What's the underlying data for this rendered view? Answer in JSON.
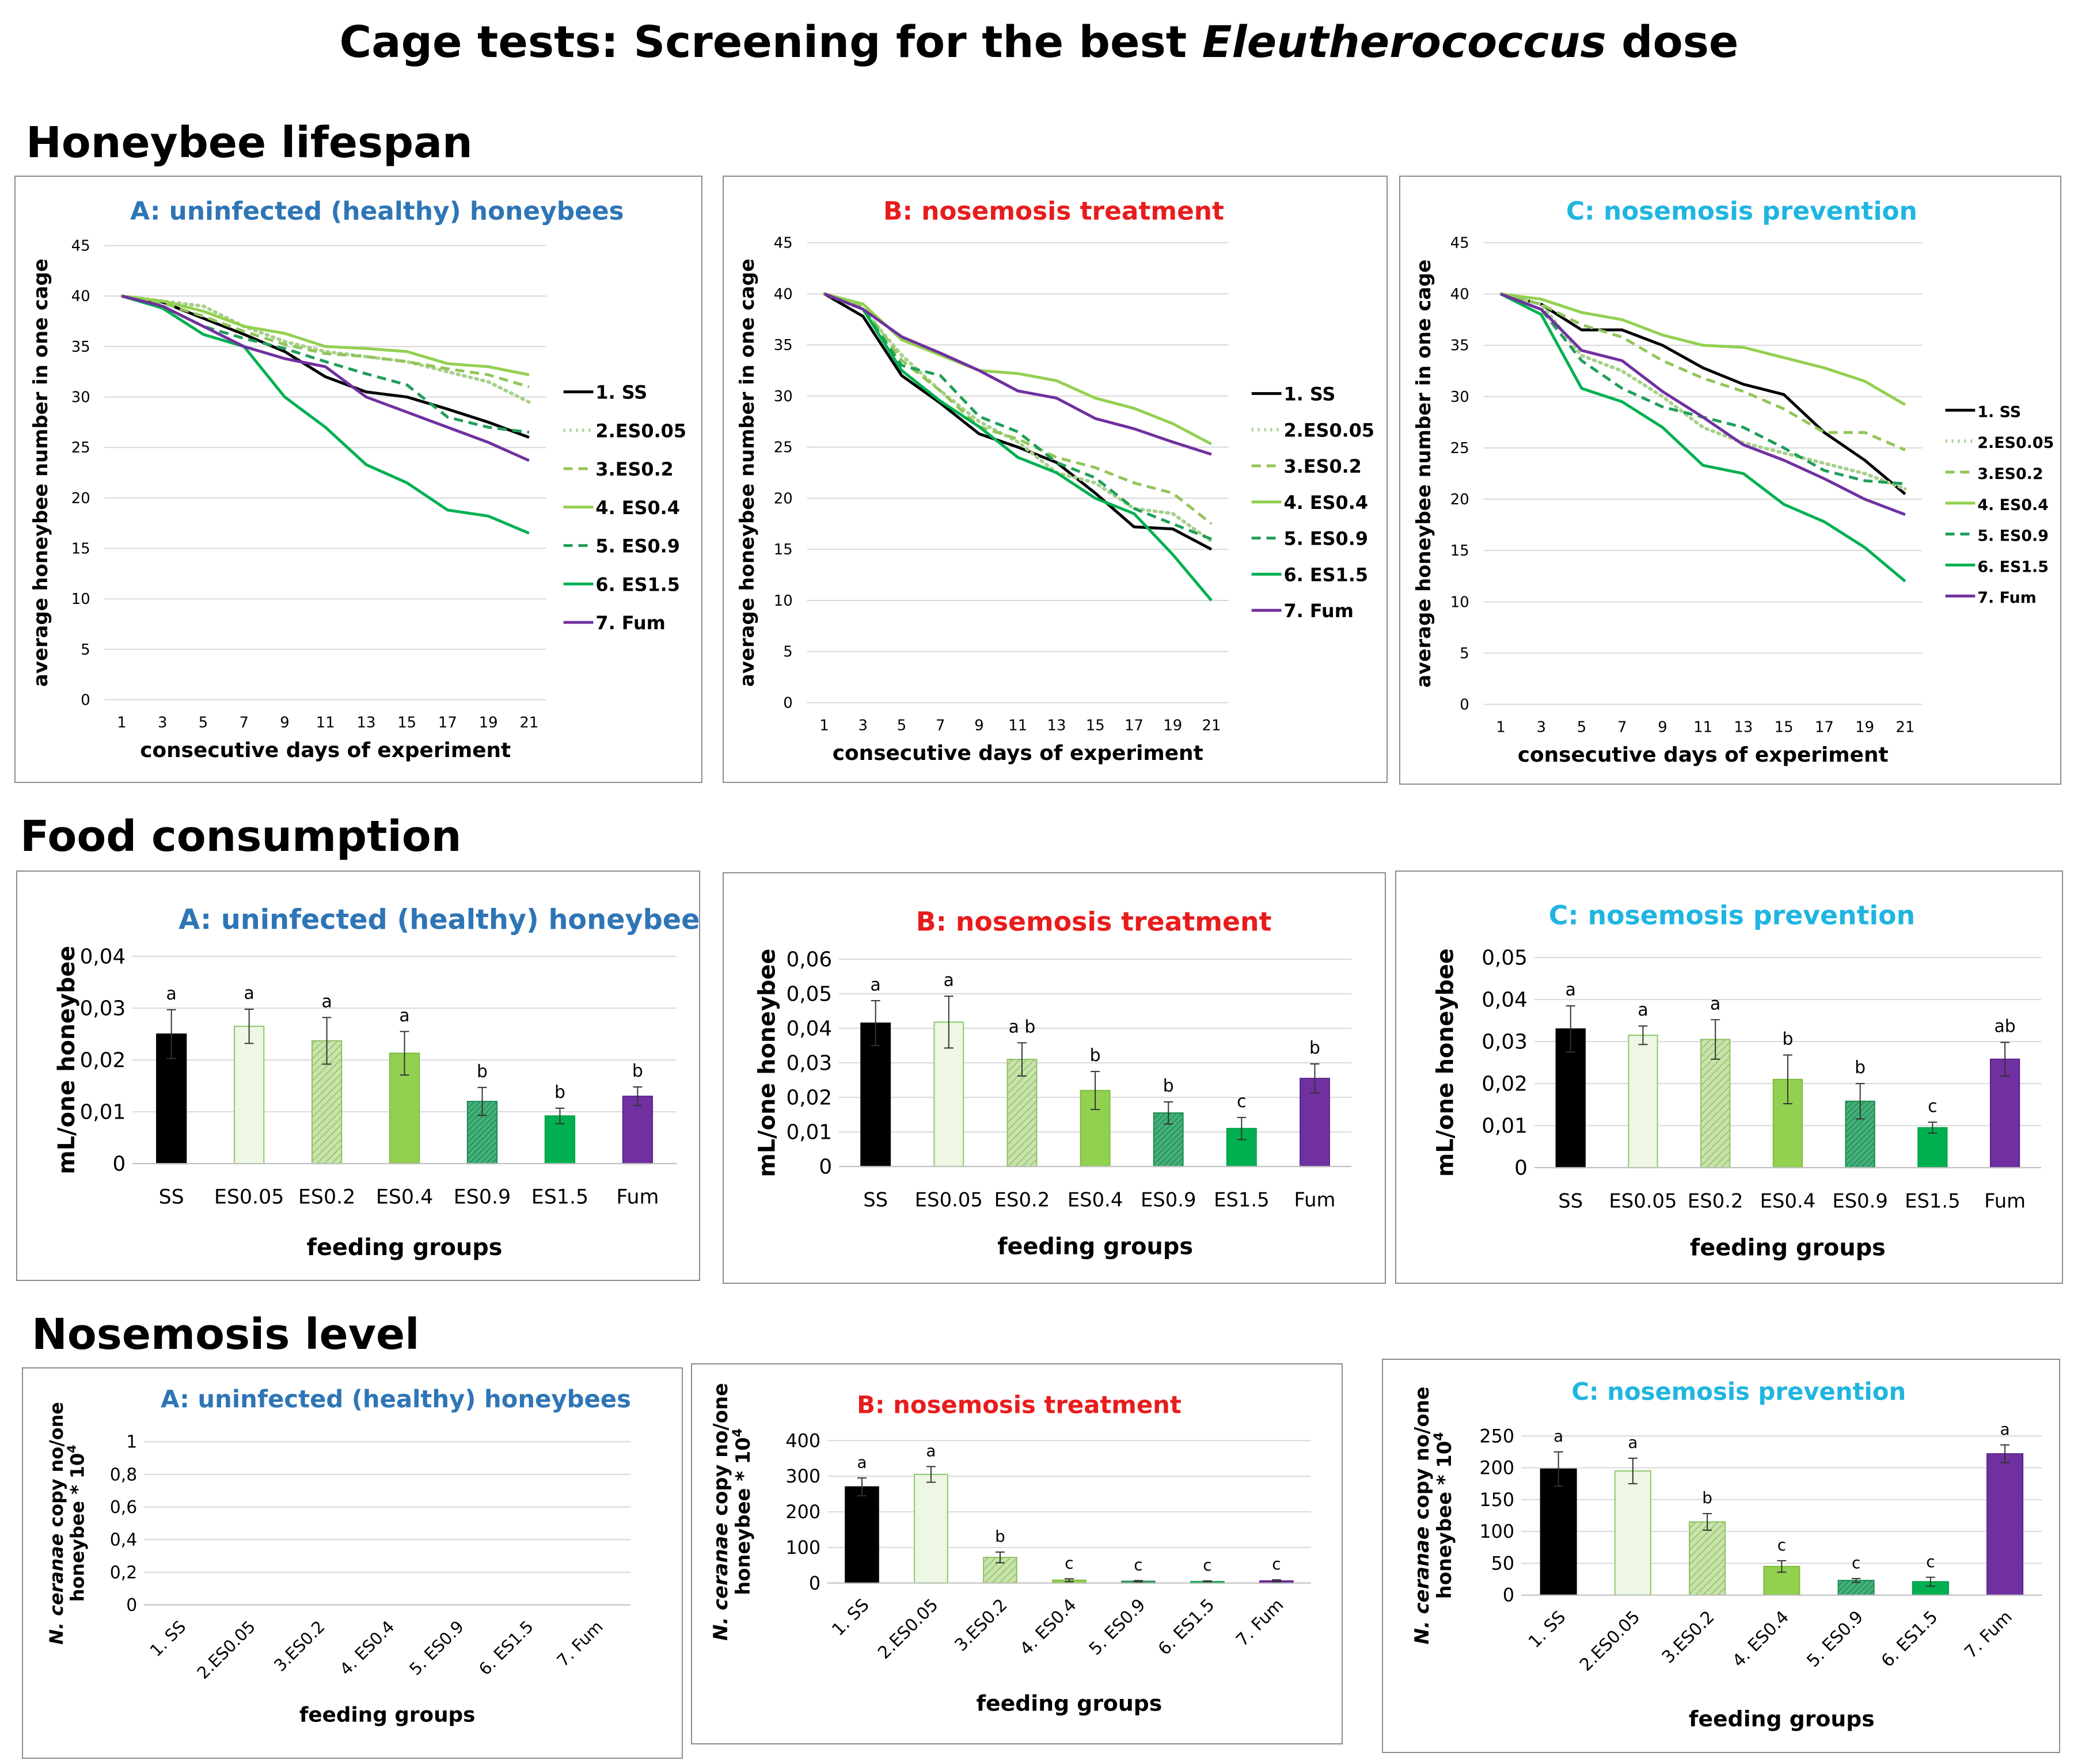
{
  "page": {
    "title_prefix": "Cage tests: Screening for the best ",
    "title_italic": "Eleutherococcus",
    "title_suffix": " dose",
    "sections": [
      "Honeybee lifespan",
      "Food consumption",
      "Nosemosis level"
    ]
  },
  "colors": {
    "SS": "#000000",
    "ES0.05": "#a8d08d",
    "ES0.2": "#92c55a",
    "ES0.4": "#92d050",
    "ES0.9": "#1f9e5a",
    "ES1.5": "#00b050",
    "Fum": "#7030a0",
    "title_A": "#2e75b6",
    "title_B": "#e81c1c",
    "title_C": "#1fb5e0"
  },
  "chart_data": [
    {
      "id": "lifespan-A",
      "type": "line",
      "title": "A: uninfected (healthy) honeybees",
      "xlabel": "consecutive days of experiment",
      "ylabel": "average honeybee number in one cage",
      "x": [
        1,
        3,
        5,
        7,
        9,
        11,
        13,
        15,
        17,
        19,
        21
      ],
      "ylim": [
        0,
        45
      ],
      "yticks": [
        0,
        5,
        10,
        15,
        20,
        25,
        30,
        35,
        40,
        45
      ],
      "grid": true,
      "legend": "right",
      "series": [
        {
          "name": "1. SS",
          "values": [
            40,
            39.4,
            37.8,
            36.2,
            34.5,
            32.0,
            30.5,
            30.0,
            28.8,
            27.5,
            26.0
          ]
        },
        {
          "name": "2.ES0.05",
          "values": [
            40,
            39.5,
            39.0,
            37.0,
            35.5,
            34.5,
            34.0,
            33.5,
            32.5,
            31.5,
            29.5
          ]
        },
        {
          "name": "3.ES0.2",
          "values": [
            40,
            39.3,
            38.0,
            36.5,
            35.2,
            34.3,
            34.0,
            33.5,
            32.8,
            32.2,
            31.0
          ]
        },
        {
          "name": "4. ES0.4",
          "values": [
            40,
            39.5,
            38.5,
            37.0,
            36.3,
            35.0,
            34.8,
            34.5,
            33.3,
            33.0,
            32.2
          ]
        },
        {
          "name": "5. ES0.9",
          "values": [
            40,
            39.0,
            37.0,
            35.8,
            34.8,
            33.5,
            32.3,
            31.2,
            28.0,
            27.0,
            26.5
          ]
        },
        {
          "name": "6. ES1.5",
          "values": [
            40,
            38.8,
            36.2,
            35.0,
            30.0,
            27.0,
            23.3,
            21.5,
            18.8,
            18.2,
            16.5
          ]
        },
        {
          "name": "7. Fum",
          "values": [
            40,
            39.0,
            37.0,
            35.0,
            33.8,
            33.0,
            30.0,
            28.5,
            27.0,
            25.5,
            23.7
          ]
        }
      ]
    },
    {
      "id": "lifespan-B",
      "type": "line",
      "title": "B: nosemosis treatment",
      "xlabel": "consecutive days of experiment",
      "ylabel": "average honeybee number in one cage",
      "x": [
        1,
        3,
        5,
        7,
        9,
        11,
        13,
        15,
        17,
        19,
        21
      ],
      "ylim": [
        0,
        45
      ],
      "yticks": [
        0,
        5,
        10,
        15,
        20,
        25,
        30,
        35,
        40,
        45
      ],
      "grid": true,
      "legend": "right",
      "series": [
        {
          "name": "1. SS",
          "values": [
            40,
            37.8,
            32.0,
            29.3,
            26.3,
            25.0,
            23.5,
            20.5,
            17.2,
            17.0,
            15.0
          ]
        },
        {
          "name": "2.ES0.05",
          "values": [
            40,
            38.5,
            34.0,
            30.5,
            27.5,
            25.5,
            22.5,
            21.5,
            19.0,
            18.5,
            15.8
          ]
        },
        {
          "name": "3.ES0.2",
          "values": [
            40,
            38.8,
            33.5,
            30.5,
            27.0,
            25.8,
            24.0,
            23.0,
            21.5,
            20.5,
            17.5
          ]
        },
        {
          "name": "4. ES0.4",
          "values": [
            40,
            39.0,
            35.5,
            34.0,
            32.5,
            32.2,
            31.5,
            29.8,
            28.8,
            27.3,
            25.3
          ]
        },
        {
          "name": "5. ES0.9",
          "values": [
            40,
            38.5,
            33.0,
            32.0,
            28.0,
            26.5,
            23.5,
            22.0,
            19.0,
            17.5,
            16.0
          ]
        },
        {
          "name": "6. ES1.5",
          "values": [
            40,
            38.5,
            32.5,
            29.5,
            27.0,
            24.0,
            22.5,
            20.0,
            18.5,
            14.5,
            10.0
          ]
        },
        {
          "name": "7. Fum",
          "values": [
            40,
            38.5,
            35.8,
            34.2,
            32.5,
            30.5,
            29.8,
            27.8,
            26.8,
            25.5,
            24.3
          ]
        }
      ]
    },
    {
      "id": "lifespan-C",
      "type": "line",
      "title": "C: nosemosis prevention",
      "xlabel": "consecutive days of experiment",
      "ylabel": "average honeybee number in one cage",
      "x": [
        1,
        3,
        5,
        7,
        9,
        11,
        13,
        15,
        17,
        19,
        21
      ],
      "ylim": [
        0,
        45
      ],
      "yticks": [
        0,
        5,
        10,
        15,
        20,
        25,
        30,
        35,
        40,
        45
      ],
      "grid": true,
      "legend": "right",
      "series": [
        {
          "name": "1. SS",
          "values": [
            40,
            39.0,
            36.5,
            36.5,
            35.0,
            32.8,
            31.2,
            30.2,
            26.5,
            23.8,
            20.5
          ]
        },
        {
          "name": "2.ES0.05",
          "values": [
            40,
            39.0,
            34.0,
            32.5,
            30.0,
            27.0,
            25.5,
            24.5,
            23.5,
            22.5,
            21.0
          ]
        },
        {
          "name": "3.ES0.2",
          "values": [
            40,
            39.0,
            37.0,
            35.8,
            33.5,
            31.8,
            30.5,
            28.8,
            26.5,
            26.5,
            24.8
          ]
        },
        {
          "name": "4. ES0.4",
          "values": [
            40,
            39.5,
            38.2,
            37.5,
            36.0,
            35.0,
            34.8,
            33.8,
            32.8,
            31.5,
            29.2
          ]
        },
        {
          "name": "5. ES0.9",
          "values": [
            40,
            38.5,
            33.5,
            30.8,
            29.0,
            28.0,
            27.0,
            25.0,
            22.8,
            21.8,
            21.5
          ]
        },
        {
          "name": "6. ES1.5",
          "values": [
            40,
            38.0,
            30.8,
            29.5,
            27.0,
            23.3,
            22.5,
            19.5,
            17.8,
            15.3,
            12.0
          ]
        },
        {
          "name": "7. Fum",
          "values": [
            40,
            38.5,
            34.5,
            33.5,
            30.5,
            28.0,
            25.3,
            23.8,
            22.0,
            20.0,
            18.5
          ]
        }
      ]
    },
    {
      "id": "food-A",
      "type": "bar",
      "title": "A: uninfected (healthy) honeybees",
      "xlabel": "feeding groups",
      "ylabel": "mL/one honeybee",
      "categories": [
        "SS",
        "ES0.05",
        "ES0.2",
        "ES0.4",
        "ES0.9",
        "ES1.5",
        "Fum"
      ],
      "values": [
        0.025,
        0.0265,
        0.0237,
        0.0213,
        0.012,
        0.0092,
        0.013
      ],
      "errors": [
        0.0047,
        0.0033,
        0.0045,
        0.0042,
        0.0027,
        0.0015,
        0.0018
      ],
      "letters": [
        "a",
        "a",
        "a",
        "a",
        "b",
        "b",
        "b"
      ],
      "ylim": [
        0,
        0.04
      ],
      "yticks": [
        "0",
        "0,01",
        "0,02",
        "0,03",
        "0,04"
      ]
    },
    {
      "id": "food-B",
      "type": "bar",
      "title": "B: nosemosis treatment",
      "xlabel": "feeding groups",
      "ylabel": "mL/one honeybee",
      "categories": [
        "SS",
        "ES0.05",
        "ES0.2",
        "ES0.4",
        "ES0.9",
        "ES1.5",
        "Fum"
      ],
      "values": [
        0.0415,
        0.0418,
        0.031,
        0.022,
        0.0155,
        0.011,
        0.0255
      ],
      "errors": [
        0.0065,
        0.0075,
        0.0048,
        0.0055,
        0.0032,
        0.0032,
        0.0042
      ],
      "letters": [
        "a",
        "a",
        "a b",
        "b",
        "b",
        "c",
        "b"
      ],
      "ylim": [
        0,
        0.06
      ],
      "yticks": [
        "0",
        "0,01",
        "0,02",
        "0,03",
        "0,04",
        "0,05",
        "0,06"
      ]
    },
    {
      "id": "food-C",
      "type": "bar",
      "title": "C: nosemosis prevention",
      "xlabel": "feeding groups",
      "ylabel": "mL/one honeybee",
      "categories": [
        "SS",
        "ES0.05",
        "ES0.2",
        "ES0.4",
        "ES0.9",
        "ES1.5",
        "Fum"
      ],
      "values": [
        0.033,
        0.0315,
        0.0305,
        0.021,
        0.0158,
        0.0095,
        0.0258
      ],
      "errors": [
        0.0055,
        0.0022,
        0.0047,
        0.0058,
        0.0042,
        0.0013,
        0.004
      ],
      "letters": [
        "a",
        "a",
        "a",
        "b",
        "b",
        "c",
        "ab"
      ],
      "ylim": [
        0,
        0.05
      ],
      "yticks": [
        "0",
        "0,01",
        "0,02",
        "0,03",
        "0,04",
        "0,05"
      ]
    },
    {
      "id": "nosema-A",
      "type": "bar",
      "title": "A: uninfected (healthy) honeybees",
      "xlabel": "feeding groups",
      "ylabel_italic": "N. ceranae",
      "ylabel_rest": " copy no/one",
      "ylabel_line2": "honeybee * 10",
      "ylabel_sup": "4",
      "categories": [
        "1. SS",
        "2.ES0.05",
        "3.ES0.2",
        "4. ES0.4",
        "5. ES0.9",
        "6. ES1.5",
        "7. Fum"
      ],
      "values": [
        0,
        0,
        0,
        0,
        0,
        0,
        0
      ],
      "errors": [
        0,
        0,
        0,
        0,
        0,
        0,
        0
      ],
      "letters": [
        "",
        "",
        "",
        "",
        "",
        "",
        ""
      ],
      "ylim": [
        0,
        1
      ],
      "yticks": [
        "0",
        "0,2",
        "0,4",
        "0,6",
        "0,8",
        "1"
      ],
      "grid": true
    },
    {
      "id": "nosema-B",
      "type": "bar",
      "title": "B: nosemosis treatment",
      "xlabel": "feeding groups",
      "ylabel_italic": "N. ceranae",
      "ylabel_rest": " copy no/one",
      "ylabel_line2": "honeybee * 10",
      "ylabel_sup": "4",
      "categories": [
        "1. SS",
        "2.ES0.05",
        "3.ES0.2",
        "4. ES0.4",
        "5. ES0.9",
        "6. ES1.5",
        "7. Fum"
      ],
      "values": [
        270,
        305,
        72,
        8,
        5,
        4,
        6
      ],
      "errors": [
        25,
        22,
        15,
        4,
        2,
        2,
        3
      ],
      "letters": [
        "a",
        "a",
        "b",
        "c",
        "c",
        "c",
        "c"
      ],
      "ylim": [
        0,
        400
      ],
      "yticks": [
        "0",
        "100",
        "200",
        "300",
        "400"
      ],
      "grid": true
    },
    {
      "id": "nosema-C",
      "type": "bar",
      "title": "C: nosemosis prevention",
      "xlabel": "feeding groups",
      "ylabel_italic": "N. ceranae",
      "ylabel_rest": " copy no/one",
      "ylabel_line2": "honeybee * 10",
      "ylabel_sup": "4",
      "categories": [
        "1. SS",
        "2.ES0.05",
        "3.ES0.2",
        "4. ES0.4",
        "5. ES0.9",
        "6. ES1.5",
        "7. Fum"
      ],
      "values": [
        198,
        195,
        115,
        45,
        23,
        21,
        222
      ],
      "errors": [
        27,
        20,
        13,
        9,
        3,
        7,
        14
      ],
      "letters": [
        "a",
        "a",
        "b",
        "c",
        "c",
        "c",
        "a"
      ],
      "ylim": [
        0,
        250
      ],
      "yticks": [
        "0",
        "50",
        "100",
        "150",
        "200",
        "250"
      ],
      "grid": true
    }
  ]
}
